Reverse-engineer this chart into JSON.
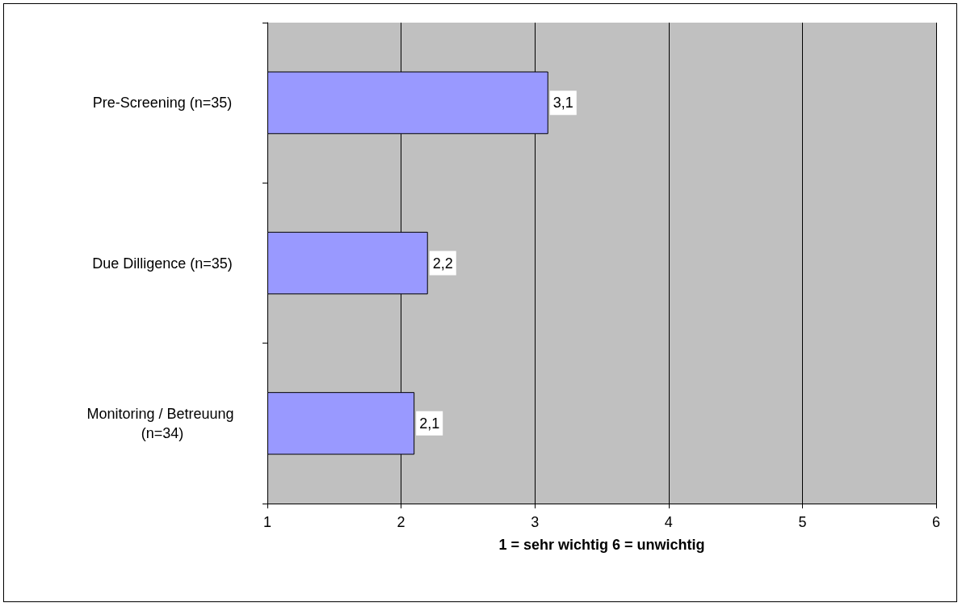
{
  "chart_data": {
    "type": "bar",
    "orientation": "horizontal",
    "xlabel": "1 = sehr wichtig 6 = unwichtig",
    "categories": [
      "Pre-Screening (n=35)",
      "Due Dilligence (n=35)",
      "Monitoring / Betreuung (n=34)"
    ],
    "values": [
      3.1,
      2.2,
      2.1
    ],
    "value_labels": [
      "3,1",
      "2,2",
      "2,1"
    ],
    "color": "#9999ff",
    "xlim": [
      1,
      6
    ],
    "xticks": [
      1,
      2,
      3,
      4,
      5,
      6
    ],
    "grid": "x"
  }
}
